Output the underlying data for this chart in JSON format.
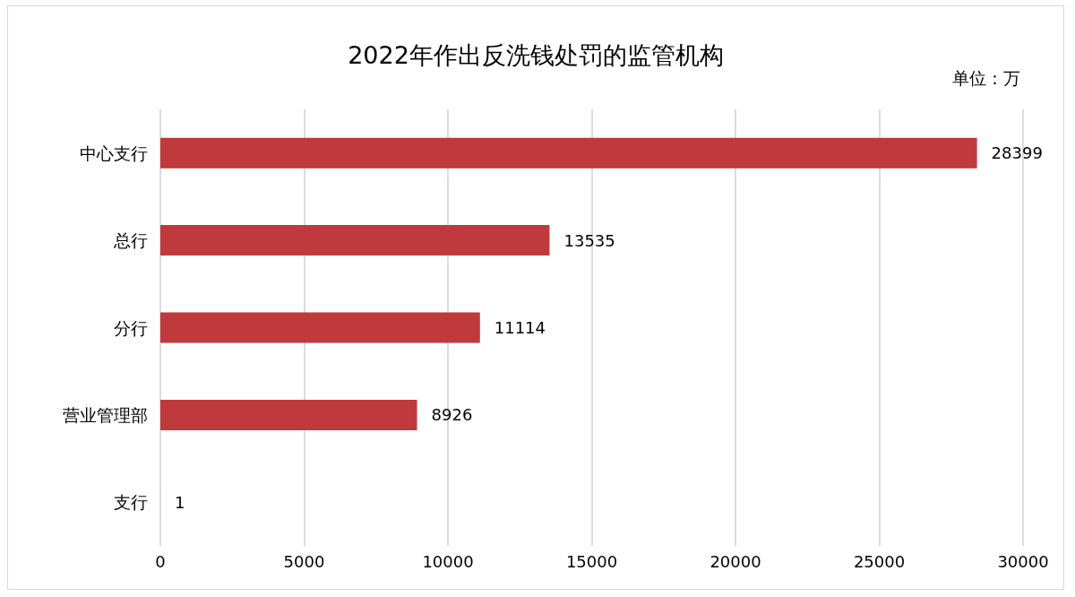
{
  "chart_data": {
    "type": "bar",
    "orientation": "horizontal",
    "title": "2022年作出反洗钱处罚的监管机构",
    "annotations": [
      "单位：万"
    ],
    "categories": [
      "中心支行",
      "总行",
      "分行",
      "营业管理部",
      "支行"
    ],
    "values": [
      28399,
      13535,
      11114,
      8926,
      1
    ],
    "color": "#c0393c",
    "xlim": [
      0,
      30000
    ],
    "xticks": [
      0,
      5000,
      10000,
      15000,
      20000,
      25000,
      30000
    ],
    "grid": "x",
    "data_labels": true
  }
}
